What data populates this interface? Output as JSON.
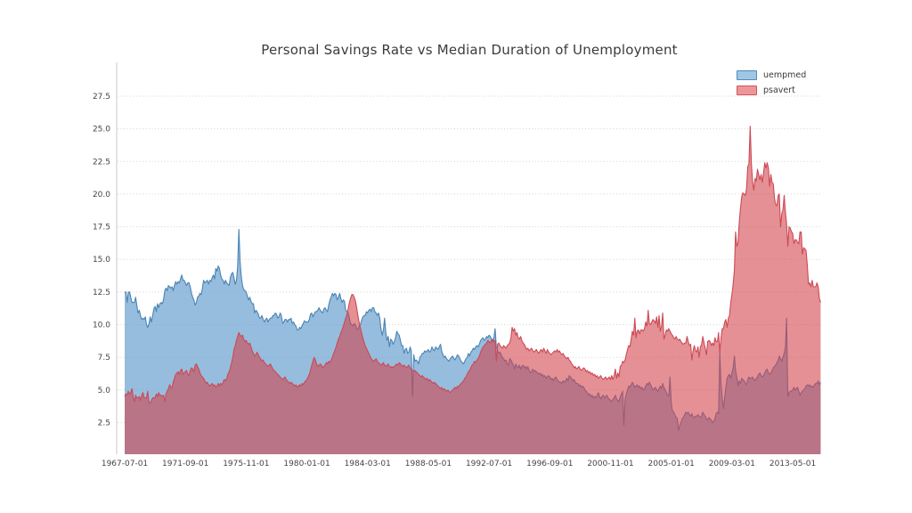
{
  "chart_data": {
    "type": "area",
    "title": "Personal Savings Rate vs Median Duration of Unemployment",
    "x_start": "1967-07-01",
    "x_step_months": 1,
    "x_tick_month_indices": [
      0,
      50,
      100,
      150,
      200,
      250,
      300,
      350,
      400,
      450,
      500,
      550
    ],
    "x_tick_labels": [
      "1967-07-01",
      "1971-09-01",
      "1975-11-01",
      "1980-01-01",
      "1984-03-01",
      "1988-05-01",
      "1992-07-01",
      "1996-09-01",
      "2000-11-01",
      "2005-01-01",
      "2009-03-01",
      "2013-05-01"
    ],
    "y_ticks": [
      2.5,
      5.0,
      7.5,
      10.0,
      12.5,
      15.0,
      17.5,
      20.0,
      22.5,
      25.0,
      27.5
    ],
    "y_range": [
      0,
      30.1
    ],
    "grid": "horizontal-dotted",
    "legend_position": "top-right",
    "colors": {
      "background": "#ffffff",
      "title_text": "#3b3b3b",
      "tick_text": "#444444",
      "gridline": "#d4d4d4",
      "axis_line": "#c9c9c9"
    },
    "series": [
      {
        "name": "uempmed",
        "line_color": "#4a83b4",
        "fill_color": "rgba(100,158,205,0.68)",
        "legend_swatch_fill": "#9ec7e4",
        "legend_swatch_border": "#5588bb",
        "values": [
          12.5,
          12.5,
          11.7,
          12.5,
          12.5,
          12.1,
          11.7,
          11.7,
          11.7,
          12.1,
          11.5,
          10.9,
          11.1,
          10.7,
          10.4,
          10.5,
          10.4,
          10.6,
          10.0,
          9.8,
          10.1,
          10.6,
          10.2,
          10.7,
          11.2,
          11.4,
          11.0,
          11.6,
          11.3,
          11.6,
          11.7,
          11.6,
          11.9,
          12.6,
          12.8,
          12.6,
          13.0,
          12.9,
          12.8,
          12.9,
          12.6,
          13.0,
          13.3,
          13.1,
          13.3,
          13.2,
          13.5,
          13.8,
          13.4,
          13.4,
          13.2,
          13.0,
          13.2,
          13.2,
          12.9,
          12.4,
          12.1,
          11.9,
          11.5,
          11.7,
          12.1,
          12.2,
          12.4,
          12.3,
          12.8,
          13.4,
          13.2,
          13.3,
          13.4,
          13.1,
          13.4,
          13.3,
          13.6,
          13.8,
          13.5,
          14.3,
          14.1,
          14.5,
          14.3,
          13.8,
          13.5,
          13.4,
          13.1,
          13.4,
          13.2,
          13.1,
          13.0,
          13.6,
          13.9,
          14.0,
          13.6,
          13.1,
          13.4,
          14.4,
          17.3,
          14.8,
          13.7,
          13.0,
          12.7,
          12.6,
          12.5,
          12.2,
          11.9,
          12.1,
          11.8,
          11.6,
          11.6,
          10.9,
          11.1,
          11.0,
          10.8,
          10.5,
          10.5,
          10.7,
          10.4,
          10.2,
          10.4,
          10.5,
          10.2,
          10.4,
          10.5,
          10.5,
          10.7,
          10.7,
          10.9,
          10.8,
          10.5,
          10.6,
          10.9,
          10.7,
          10.1,
          10.2,
          10.4,
          10.4,
          10.2,
          10.4,
          10.4,
          10.5,
          10.1,
          10.2,
          10.0,
          9.9,
          9.6,
          9.6,
          9.8,
          9.7,
          9.9,
          10.1,
          10.3,
          10.2,
          10.2,
          10.2,
          10.4,
          10.8,
          10.9,
          10.6,
          10.8,
          11.0,
          11.0,
          11.1,
          11.3,
          11.1,
          11.0,
          10.9,
          11.2,
          11.3,
          11.1,
          11.0,
          11.5,
          11.9,
          12.1,
          12.4,
          12.2,
          12.4,
          12.3,
          11.9,
          12.1,
          12.4,
          12.0,
          11.7,
          11.9,
          11.8,
          11.1,
          11.0,
          10.9,
          10.5,
          10.1,
          10.0,
          9.9,
          10.1,
          10.0,
          9.7,
          9.6,
          9.9,
          10.0,
          10.3,
          10.6,
          10.7,
          10.7,
          11.0,
          10.9,
          11.1,
          11.2,
          11.0,
          11.3,
          11.3,
          11.0,
          10.9,
          10.7,
          10.9,
          10.5,
          9.7,
          9.2,
          9.6,
          10.5,
          9.4,
          8.8,
          9.1,
          8.3,
          8.9,
          8.8,
          8.5,
          8.7,
          9.0,
          9.5,
          9.3,
          9.2,
          8.8,
          8.4,
          8.4,
          7.8,
          8.1,
          8.2,
          7.8,
          7.9,
          8.3,
          8.0,
          4.5,
          7.7,
          7.2,
          7.3,
          7.2,
          7.0,
          7.5,
          7.6,
          7.8,
          7.8,
          8.0,
          7.9,
          8.0,
          8.1,
          7.9,
          8.0,
          8.3,
          8.1,
          8.0,
          8.3,
          8.2,
          8.1,
          8.3,
          8.5,
          8.0,
          7.7,
          7.5,
          7.6,
          7.4,
          7.3,
          7.2,
          7.4,
          7.5,
          7.6,
          7.4,
          7.3,
          7.5,
          7.7,
          7.6,
          7.4,
          7.2,
          7.1,
          7.0,
          7.2,
          7.4,
          7.5,
          7.8,
          7.6,
          7.9,
          8.0,
          8.2,
          8.1,
          8.3,
          8.4,
          8.3,
          8.5,
          8.8,
          8.9,
          9.0,
          8.8,
          8.9,
          9.1,
          9.0,
          9.2,
          9.1,
          8.9,
          8.7,
          9.0,
          9.7,
          8.3,
          8.0,
          7.8,
          7.9,
          7.7,
          7.5,
          7.4,
          7.2,
          7.3,
          7.0,
          6.9,
          7.4,
          7.3,
          7.1,
          6.9,
          6.6,
          7.0,
          6.8,
          6.7,
          6.9,
          6.6,
          6.8,
          6.9,
          6.7,
          6.8,
          6.6,
          6.8,
          6.5,
          6.3,
          6.4,
          6.6,
          6.4,
          6.5,
          6.4,
          6.3,
          6.2,
          6.3,
          6.1,
          6.2,
          6.0,
          6.1,
          5.9,
          6.0,
          6.1,
          6.0,
          5.8,
          5.9,
          5.7,
          5.9,
          6.0,
          5.8,
          5.7,
          5.6,
          5.6,
          5.5,
          5.7,
          5.6,
          5.7,
          5.9,
          5.7,
          6.1,
          6.0,
          5.9,
          5.7,
          5.8,
          5.6,
          5.5,
          5.5,
          5.3,
          5.4,
          5.2,
          5.3,
          5.2,
          5.0,
          4.9,
          4.8,
          4.6,
          4.7,
          4.5,
          4.6,
          4.4,
          4.5,
          4.4,
          4.6,
          4.8,
          4.5,
          4.3,
          4.5,
          4.6,
          4.4,
          4.5,
          4.6,
          4.4,
          4.3,
          4.2,
          4.1,
          4.3,
          4.4,
          4.6,
          4.3,
          4.2,
          4.1,
          4.5,
          4.7,
          4.9,
          2.3,
          4.3,
          4.7,
          5.0,
          5.3,
          5.2,
          5.4,
          5.6,
          5.4,
          5.2,
          5.3,
          5.4,
          5.2,
          5.3,
          5.1,
          5.2,
          5.0,
          5.1,
          5.3,
          5.5,
          5.4,
          5.6,
          5.4,
          5.2,
          5.0,
          5.1,
          5.2,
          5.0,
          4.9,
          5.1,
          5.3,
          5.1,
          5.5,
          5.2,
          5.0,
          4.8,
          4.6,
          4.5,
          6.0,
          4.0,
          3.4,
          3.3,
          3.1,
          2.9,
          2.8,
          1.9,
          2.3,
          2.5,
          2.8,
          2.9,
          3.1,
          3.3,
          3.2,
          3.3,
          3.1,
          3.0,
          3.2,
          2.9,
          2.9,
          3.0,
          3.0,
          3.1,
          3.0,
          2.9,
          3.0,
          3.3,
          3.1,
          3.0,
          2.8,
          2.7,
          2.9,
          2.8,
          2.7,
          2.5,
          2.6,
          2.8,
          3.2,
          3.3,
          3.2,
          7.9,
          5.4,
          4.4,
          3.6,
          4.4,
          5.2,
          5.9,
          6.1,
          6.2,
          5.9,
          6.3,
          6.7,
          7.6,
          6.5,
          6.0,
          5.3,
          5.7,
          5.5,
          5.9,
          5.8,
          5.7,
          5.5,
          5.4,
          5.8,
          6.0,
          5.9,
          5.9,
          6.0,
          5.8,
          5.7,
          5.9,
          6.0,
          6.2,
          6.3,
          6.1,
          6.0,
          6.1,
          6.3,
          6.5,
          6.6,
          6.3,
          6.2,
          6.3,
          6.5,
          6.7,
          6.8,
          6.9,
          7.1,
          7.3,
          7.6,
          7.4,
          7.2,
          7.5,
          7.8,
          8.3,
          10.5,
          4.5,
          4.8,
          4.9,
          4.9,
          5.0,
          5.2,
          5.0,
          5.1,
          5.2,
          4.9,
          4.6,
          4.8,
          4.9,
          5.0,
          5.1,
          5.3,
          5.4,
          5.3,
          5.4,
          5.2,
          5.3,
          5.2,
          5.4,
          5.5,
          5.5,
          5.7,
          5.4,
          5.6
        ]
      },
      {
        "name": "psavert",
        "line_color": "#cb4a55",
        "fill_color": "rgba(211,63,73,0.58)",
        "legend_swatch_fill": "#ee9598",
        "legend_swatch_border": "#cf5560",
        "values": [
          4.5,
          4.7,
          4.6,
          4.9,
          4.7,
          4.8,
          5.1,
          4.5,
          4.1,
          4.6,
          4.4,
          4.4,
          4.5,
          4.2,
          4.6,
          4.8,
          4.4,
          4.4,
          4.4,
          4.9,
          4.0,
          4.0,
          4.2,
          4.4,
          4.4,
          4.4,
          4.7,
          4.5,
          4.8,
          4.6,
          4.6,
          4.5,
          4.6,
          4.1,
          4.7,
          4.9,
          5.1,
          5.4,
          5.2,
          5.2,
          5.6,
          5.9,
          6.2,
          6.3,
          6.4,
          6.2,
          6.5,
          6.6,
          6.2,
          6.3,
          6.4,
          6.5,
          6.2,
          6.1,
          6.5,
          6.7,
          6.6,
          6.4,
          6.9,
          7.0,
          6.8,
          6.6,
          6.3,
          6.1,
          6.0,
          5.9,
          5.7,
          5.5,
          5.6,
          5.4,
          5.3,
          5.4,
          5.5,
          5.3,
          5.4,
          5.2,
          5.3,
          5.5,
          5.3,
          5.5,
          5.4,
          5.6,
          5.8,
          5.7,
          5.9,
          6.2,
          6.4,
          6.7,
          7.1,
          7.5,
          8.1,
          8.4,
          8.8,
          9.1,
          9.4,
          9.2,
          9.1,
          9.2,
          8.9,
          8.7,
          8.8,
          8.6,
          8.5,
          8.6,
          8.3,
          8.0,
          7.8,
          7.6,
          7.7,
          7.9,
          7.7,
          7.5,
          7.4,
          7.2,
          7.3,
          7.1,
          7.0,
          6.9,
          6.8,
          6.9,
          7.0,
          6.8,
          6.6,
          6.5,
          6.4,
          6.3,
          6.2,
          6.1,
          6.0,
          5.9,
          5.8,
          5.9,
          6.0,
          5.8,
          5.7,
          5.6,
          5.5,
          5.6,
          5.5,
          5.4,
          5.3,
          5.4,
          5.2,
          5.3,
          5.4,
          5.3,
          5.5,
          5.4,
          5.6,
          5.7,
          5.8,
          6.0,
          6.2,
          6.5,
          6.9,
          7.2,
          7.5,
          7.3,
          7.0,
          6.8,
          6.9,
          7.0,
          6.9,
          6.7,
          6.8,
          6.9,
          7.1,
          7.0,
          7.2,
          7.1,
          7.3,
          7.5,
          7.8,
          8.0,
          8.3,
          8.6,
          8.9,
          9.1,
          9.4,
          9.6,
          9.9,
          10.2,
          10.5,
          10.8,
          11.2,
          11.7,
          12.0,
          12.3,
          12.3,
          12.1,
          11.8,
          11.3,
          10.7,
          10.2,
          9.8,
          9.4,
          9.0,
          8.7,
          8.4,
          8.2,
          8.0,
          7.8,
          7.6,
          7.4,
          7.3,
          7.2,
          7.3,
          7.4,
          7.2,
          7.1,
          7.0,
          6.9,
          7.0,
          7.1,
          6.9,
          6.8,
          6.9,
          7.0,
          6.8,
          6.7,
          6.8,
          6.7,
          6.8,
          6.9,
          7.0,
          6.9,
          7.1,
          7.0,
          6.9,
          6.8,
          6.9,
          6.8,
          6.7,
          6.8,
          6.9,
          6.7,
          6.6,
          6.5,
          6.4,
          6.5,
          6.4,
          6.3,
          6.2,
          6.1,
          6.0,
          6.1,
          6.0,
          5.9,
          5.8,
          5.9,
          5.7,
          5.8,
          5.7,
          5.6,
          5.5,
          5.6,
          5.5,
          5.4,
          5.3,
          5.2,
          5.1,
          5.2,
          5.0,
          5.1,
          5.0,
          4.9,
          5.0,
          4.9,
          4.8,
          4.9,
          5.0,
          5.1,
          5.2,
          5.1,
          5.3,
          5.2,
          5.4,
          5.5,
          5.6,
          5.7,
          5.9,
          6.0,
          6.2,
          6.4,
          6.5,
          6.7,
          6.9,
          7.0,
          7.2,
          7.1,
          7.3,
          7.4,
          7.6,
          7.9,
          8.1,
          8.3,
          8.4,
          8.5,
          8.6,
          8.8,
          8.7,
          8.6,
          8.8,
          8.9,
          8.7,
          8.8,
          7.2,
          8.5,
          8.6,
          8.4,
          8.3,
          8.2,
          8.4,
          8.3,
          8.2,
          8.4,
          8.5,
          8.6,
          9.0,
          9.8,
          9.5,
          9.7,
          9.2,
          9.4,
          9.0,
          8.9,
          9.1,
          8.8,
          8.6,
          8.5,
          8.3,
          8.1,
          8.2,
          8.0,
          8.1,
          8.2,
          8.0,
          7.9,
          8.0,
          8.1,
          7.9,
          7.8,
          8.0,
          8.1,
          7.9,
          8.2,
          8.0,
          7.8,
          8.1,
          7.9,
          7.8,
          7.7,
          7.8,
          7.9,
          8.0,
          7.9,
          8.1,
          7.9,
          8.0,
          7.8,
          7.7,
          7.8,
          7.6,
          7.5,
          7.4,
          7.5,
          7.3,
          7.2,
          7.0,
          6.9,
          6.7,
          6.8,
          6.6,
          6.7,
          6.8,
          6.6,
          6.5,
          6.6,
          6.7,
          6.6,
          6.4,
          6.5,
          6.3,
          6.4,
          6.2,
          6.3,
          6.1,
          6.2,
          6.0,
          6.1,
          5.9,
          6.0,
          6.1,
          5.9,
          5.8,
          5.9,
          6.0,
          5.8,
          5.9,
          6.0,
          5.8,
          6.1,
          5.8,
          6.1,
          6.6,
          5.9,
          6.3,
          6.0,
          6.8,
          6.9,
          7.2,
          7.1,
          7.3,
          7.7,
          8.1,
          8.4,
          8.3,
          8.9,
          9.5,
          9.2,
          10.5,
          9.0,
          9.5,
          9.6,
          9.3,
          9.6,
          9.6,
          9.5,
          9.7,
          10.2,
          9.9,
          11.1,
          10.1,
          10.0,
          10.2,
          10.4,
          10.3,
          10.1,
          10.6,
          9.8,
          10.7,
          9.5,
          9.9,
          10.9,
          8.9,
          9.2,
          9.6,
          9.5,
          9.7,
          9.5,
          9.3,
          9.2,
          9.0,
          8.9,
          9.1,
          8.9,
          8.8,
          8.9,
          8.7,
          8.6,
          8.5,
          8.6,
          8.6,
          9.1,
          8.7,
          8.4,
          8.5,
          7.3,
          8.0,
          8.4,
          8.0,
          7.9,
          8.3,
          7.5,
          8.3,
          8.5,
          9.1,
          8.6,
          8.2,
          7.7,
          8.7,
          8.8,
          8.7,
          8.4,
          8.6,
          8.4,
          9.0,
          8.7,
          8.7,
          9.4,
          7.9,
          9.0,
          9.7,
          9.7,
          10.2,
          10.4,
          9.8,
          10.5,
          10.7,
          11.7,
          12.3,
          13.1,
          14.2,
          17.1,
          16.0,
          16.3,
          17.8,
          18.9,
          19.8,
          20.1,
          20.0,
          19.9,
          20.4,
          22.1,
          22.3,
          25.2,
          22.3,
          21.0,
          20.3,
          21.2,
          21.0,
          21.9,
          21.5,
          21.1,
          21.5,
          20.9,
          21.6,
          22.4,
          22.0,
          22.4,
          22.0,
          20.6,
          21.5,
          20.9,
          20.8,
          19.7,
          19.2,
          19.1,
          19.9,
          20.0,
          17.5,
          18.5,
          18.8,
          19.9,
          18.6,
          17.7,
          16.0,
          17.5,
          17.4,
          17.1,
          17.0,
          16.2,
          16.5,
          16.5,
          16.3,
          16.2,
          17.1,
          17.1,
          15.4,
          15.9,
          15.8,
          15.7,
          14.6,
          13.1,
          13.2,
          12.9,
          13.4,
          12.9,
          12.9,
          12.9,
          13.2,
          12.9,
          12.0,
          11.7
        ]
      }
    ]
  }
}
